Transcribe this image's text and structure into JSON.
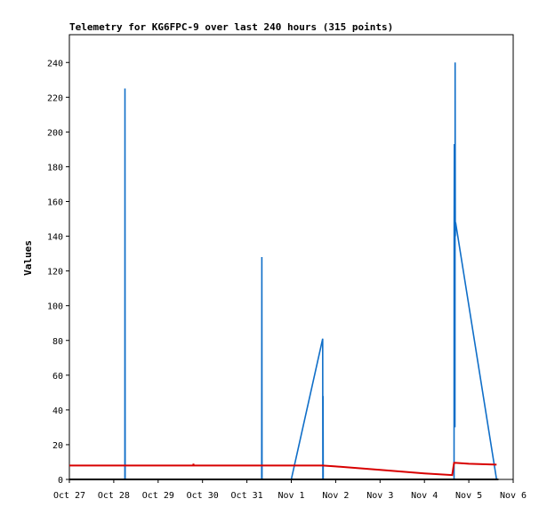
{
  "chart_data": {
    "type": "line",
    "title": "Telemetry for KG6FPC-9 over last 240 hours (315 points)",
    "ylabel": "Values",
    "xlabel": "",
    "ylim": [
      0,
      256
    ],
    "xlim": [
      "2024-10-27 00:00",
      "2024-11-06 00:00"
    ],
    "y_ticks": [
      0,
      20,
      40,
      60,
      80,
      100,
      120,
      140,
      160,
      180,
      200,
      220,
      240
    ],
    "x_ticks": [
      {
        "label": "Oct 27",
        "t": "2024-10-27 00:00"
      },
      {
        "label": "Oct 28",
        "t": "2024-10-28 00:00"
      },
      {
        "label": "Oct 29",
        "t": "2024-10-29 00:00"
      },
      {
        "label": "Oct 30",
        "t": "2024-10-30 00:00"
      },
      {
        "label": "Oct 31",
        "t": "2024-10-31 00:00"
      },
      {
        "label": "Nov 1",
        "t": "2024-11-01 00:00"
      },
      {
        "label": "Nov 2",
        "t": "2024-11-02 00:00"
      },
      {
        "label": "Nov 3",
        "t": "2024-11-03 00:00"
      },
      {
        "label": "Nov 4",
        "t": "2024-11-04 00:00"
      },
      {
        "label": "Nov 5",
        "t": "2024-11-05 00:00"
      },
      {
        "label": "Nov 6",
        "t": "2024-11-06 00:00"
      }
    ],
    "grid": false,
    "series": [
      {
        "color": "#0f6ec8",
        "points": [
          [
            "2024-10-28 06:00",
            0
          ],
          [
            "2024-10-28 06:05",
            225
          ],
          [
            "2024-10-28 06:10",
            0
          ],
          [
            "2024-10-31 08:00",
            0
          ],
          [
            "2024-10-31 08:05",
            128
          ],
          [
            "2024-10-31 08:10",
            0
          ],
          [
            "2024-11-01 00:00",
            0
          ],
          [
            "2024-11-01 17:00",
            81
          ],
          [
            "2024-11-01 17:05",
            0
          ],
          [
            "2024-11-01 17:10",
            48
          ],
          [
            "2024-11-01 17:15",
            0
          ],
          [
            "2024-11-04 16:00",
            0
          ],
          [
            "2024-11-04 16:05",
            145
          ],
          [
            "2024-11-04 16:10",
            193
          ],
          [
            "2024-11-04 16:15",
            30
          ],
          [
            "2024-11-04 16:20",
            148
          ],
          [
            "2024-11-04 16:30",
            30
          ],
          [
            "2024-11-04 16:35",
            240
          ],
          [
            "2024-11-04 16:40",
            140
          ],
          [
            "2024-11-04 16:50",
            148
          ],
          [
            "2024-11-05 15:00",
            0
          ]
        ]
      },
      {
        "color": "#d80000",
        "points": [
          [
            "2024-10-27 00:00",
            8
          ],
          [
            "2024-10-28 00:00",
            8
          ],
          [
            "2024-10-29 00:00",
            8
          ],
          [
            "2024-10-29 19:00",
            8
          ],
          [
            "2024-10-29 19:05",
            9
          ],
          [
            "2024-10-29 19:10",
            8
          ],
          [
            "2024-10-30 00:00",
            8
          ],
          [
            "2024-10-31 00:00",
            8
          ],
          [
            "2024-11-01 00:00",
            8
          ],
          [
            "2024-11-01 17:00",
            8
          ],
          [
            "2024-11-02 00:00",
            7.5
          ],
          [
            "2024-11-03 00:00",
            5.5
          ],
          [
            "2024-11-04 00:00",
            3.5
          ],
          [
            "2024-11-04 15:00",
            2.5
          ],
          [
            "2024-11-04 16:00",
            9.5
          ],
          [
            "2024-11-04 17:00",
            9.5
          ],
          [
            "2024-11-05 00:00",
            9
          ],
          [
            "2024-11-05 15:00",
            8.5
          ]
        ]
      },
      {
        "color": "#000000",
        "points": [
          [
            "2024-10-27 00:00",
            0
          ],
          [
            "2024-11-05 16:00",
            0
          ]
        ]
      }
    ]
  }
}
